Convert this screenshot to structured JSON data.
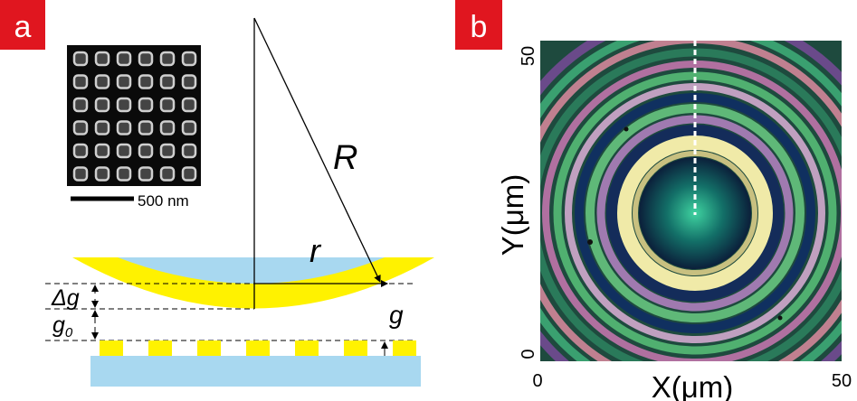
{
  "panel_a": {
    "label": "a",
    "scale_bar": "500 nm",
    "labels": {
      "R": "R",
      "r": "r",
      "delta_g": "Δg",
      "g0": {
        "base": "g",
        "sub": "0"
      },
      "g": "g"
    }
  },
  "panel_b": {
    "label": "b",
    "y_axis_label": "Y(μm)",
    "x_axis_label": "X(μm)",
    "y_ticks": [
      "50",
      "0"
    ],
    "x_ticks": [
      "0",
      "50"
    ]
  }
}
